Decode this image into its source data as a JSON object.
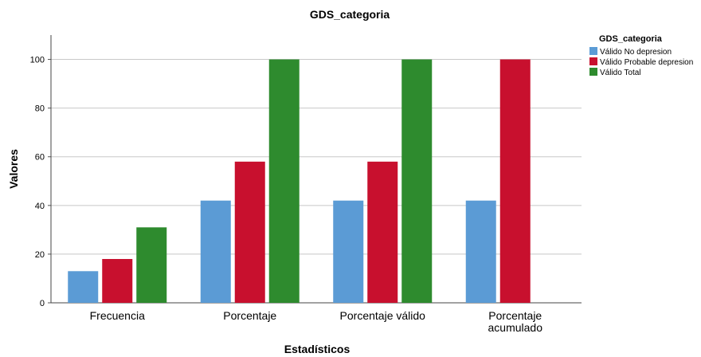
{
  "chart_data": {
    "type": "bar",
    "title": "GDS_categoria",
    "xlabel": "Estadísticos",
    "ylabel": "Valores",
    "ylim": [
      0,
      110
    ],
    "yticks": [
      0,
      20,
      40,
      60,
      80,
      100
    ],
    "grid": true,
    "legend_title": "GDS_categoria",
    "legend_position": "top-right",
    "categories": [
      "Frecuencia",
      "Porcentaje",
      "Porcentaje válido",
      "Porcentaje acumulado"
    ],
    "series": [
      {
        "name": "Válido No depresion",
        "color": "#5b9bd5",
        "values": [
          13,
          42,
          42,
          42
        ]
      },
      {
        "name": "Válido Probable depresion",
        "color": "#c8102e",
        "values": [
          18,
          58,
          58,
          100
        ]
      },
      {
        "name": "Válido Total",
        "color": "#2e8b2e",
        "values": [
          31,
          100,
          100,
          null
        ]
      }
    ]
  }
}
